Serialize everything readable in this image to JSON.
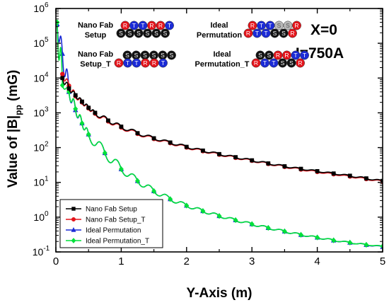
{
  "chart_data": {
    "type": "line",
    "xlabel": "Y-Axis (m)",
    "ylabel": "Value of |B|",
    "ylabel_sub": "pp",
    "ylabel_unit": " (mG)",
    "xlim": [
      0,
      5
    ],
    "ylim": [
      0.1,
      1000000
    ],
    "yscale": "log",
    "grid": false,
    "legend_position": "bottom-left",
    "x_ticks": [
      "0",
      "1",
      "2",
      "3",
      "4",
      "5"
    ],
    "y_ticks": [
      {
        "base": "10",
        "exp": "-1"
      },
      {
        "base": "10",
        "exp": "0"
      },
      {
        "base": "10",
        "exp": "1"
      },
      {
        "base": "10",
        "exp": "2"
      },
      {
        "base": "10",
        "exp": "3"
      },
      {
        "base": "10",
        "exp": "4"
      },
      {
        "base": "10",
        "exp": "5"
      },
      {
        "base": "10",
        "exp": "6"
      }
    ],
    "annotations": [
      {
        "text": "X=0"
      },
      {
        "text": "I=750A"
      },
      {
        "lines": [
          "Nano Fab",
          "Setup"
        ]
      },
      {
        "lines": [
          "Nano Fab",
          "Setup_T"
        ]
      },
      {
        "lines": [
          "Ideal",
          "Permutation"
        ]
      },
      {
        "lines": [
          "Ideal",
          "Permutation_T"
        ]
      }
    ],
    "phase_diagrams": [
      {
        "rows": [
          "RTTRRT",
          "SSSSSS"
        ]
      },
      {
        "rows": [
          "SSSSSS",
          "RTTRRT"
        ]
      },
      {
        "rows": [
          "RTTSSR",
          "RTTSSR"
        ]
      },
      {
        "rows": [
          "SSRRTT",
          "RTTSSR"
        ]
      }
    ],
    "phase_colors": {
      "R": "#e4141b",
      "T": "#1b2bd6",
      "S_light": "#b8b8b8",
      "S_dark": "#111111"
    },
    "series": [
      {
        "name": "Nano Fab Setup",
        "color": "#000000",
        "marker": "square",
        "x": [
          0.1,
          0.2,
          0.3,
          0.4,
          0.5,
          0.6,
          0.8,
          1.0,
          1.25,
          1.5,
          1.75,
          2.0,
          2.25,
          2.5,
          2.75,
          3.0,
          3.25,
          3.5,
          3.75,
          4.0,
          4.25,
          4.5,
          4.75,
          5.0
        ],
        "y": [
          10000,
          5000,
          3200,
          2100,
          1400,
          1000,
          600,
          400,
          260,
          185,
          140,
          105,
          82,
          65,
          53,
          43,
          35,
          29,
          24.5,
          21,
          18,
          15.5,
          13,
          11
        ]
      },
      {
        "name": "Nano Fab Setup_T",
        "color": "#e4141b",
        "marker": "circle",
        "x": [
          0.1,
          0.2,
          0.3,
          0.4,
          0.5,
          0.6,
          0.8,
          1.0,
          1.25,
          1.5,
          1.75,
          2.0,
          2.25,
          2.5,
          2.75,
          3.0,
          3.25,
          3.5,
          3.75,
          4.0,
          4.25,
          4.5,
          4.75,
          5.0
        ],
        "y": [
          13000,
          6000,
          3000,
          2000,
          1350,
          950,
          570,
          380,
          250,
          178,
          135,
          101,
          79,
          63,
          51,
          42,
          34,
          28,
          23.5,
          20,
          17.2,
          14.8,
          12.5,
          10.6
        ]
      },
      {
        "name": "Ideal Permutation",
        "color": "#1b2bd6",
        "marker": "triangle",
        "x": [
          0.02,
          0.1,
          0.2,
          0.3,
          0.4,
          0.5,
          0.75,
          1.0,
          1.25,
          1.5,
          1.75,
          2.0,
          2.25,
          2.5,
          2.75,
          3.0,
          3.25,
          3.5,
          3.75,
          4.0,
          4.25,
          4.5,
          4.75,
          5.0
        ],
        "y": [
          350000,
          50000,
          4000,
          1200,
          500,
          240,
          70,
          24,
          11,
          5.6,
          3.3,
          2.15,
          1.5,
          1.08,
          0.82,
          0.63,
          0.49,
          0.39,
          0.31,
          0.26,
          0.215,
          0.185,
          0.16,
          0.14
        ]
      },
      {
        "name": "Ideal Permutation_T",
        "color": "#00e03a",
        "marker": "diamond",
        "x": [
          0.02,
          0.1,
          0.2,
          0.3,
          0.4,
          0.5,
          0.75,
          1.0,
          1.25,
          1.5,
          1.75,
          2.0,
          2.25,
          2.5,
          2.75,
          3.0,
          3.25,
          3.5,
          3.75,
          4.0,
          4.25,
          4.5,
          4.75,
          5.0
        ],
        "y": [
          400000,
          6200,
          4000,
          1300,
          500,
          240,
          70,
          24,
          11,
          5.6,
          3.3,
          2.15,
          1.5,
          1.08,
          0.82,
          0.63,
          0.49,
          0.39,
          0.31,
          0.26,
          0.215,
          0.185,
          0.16,
          0.145
        ]
      }
    ]
  }
}
